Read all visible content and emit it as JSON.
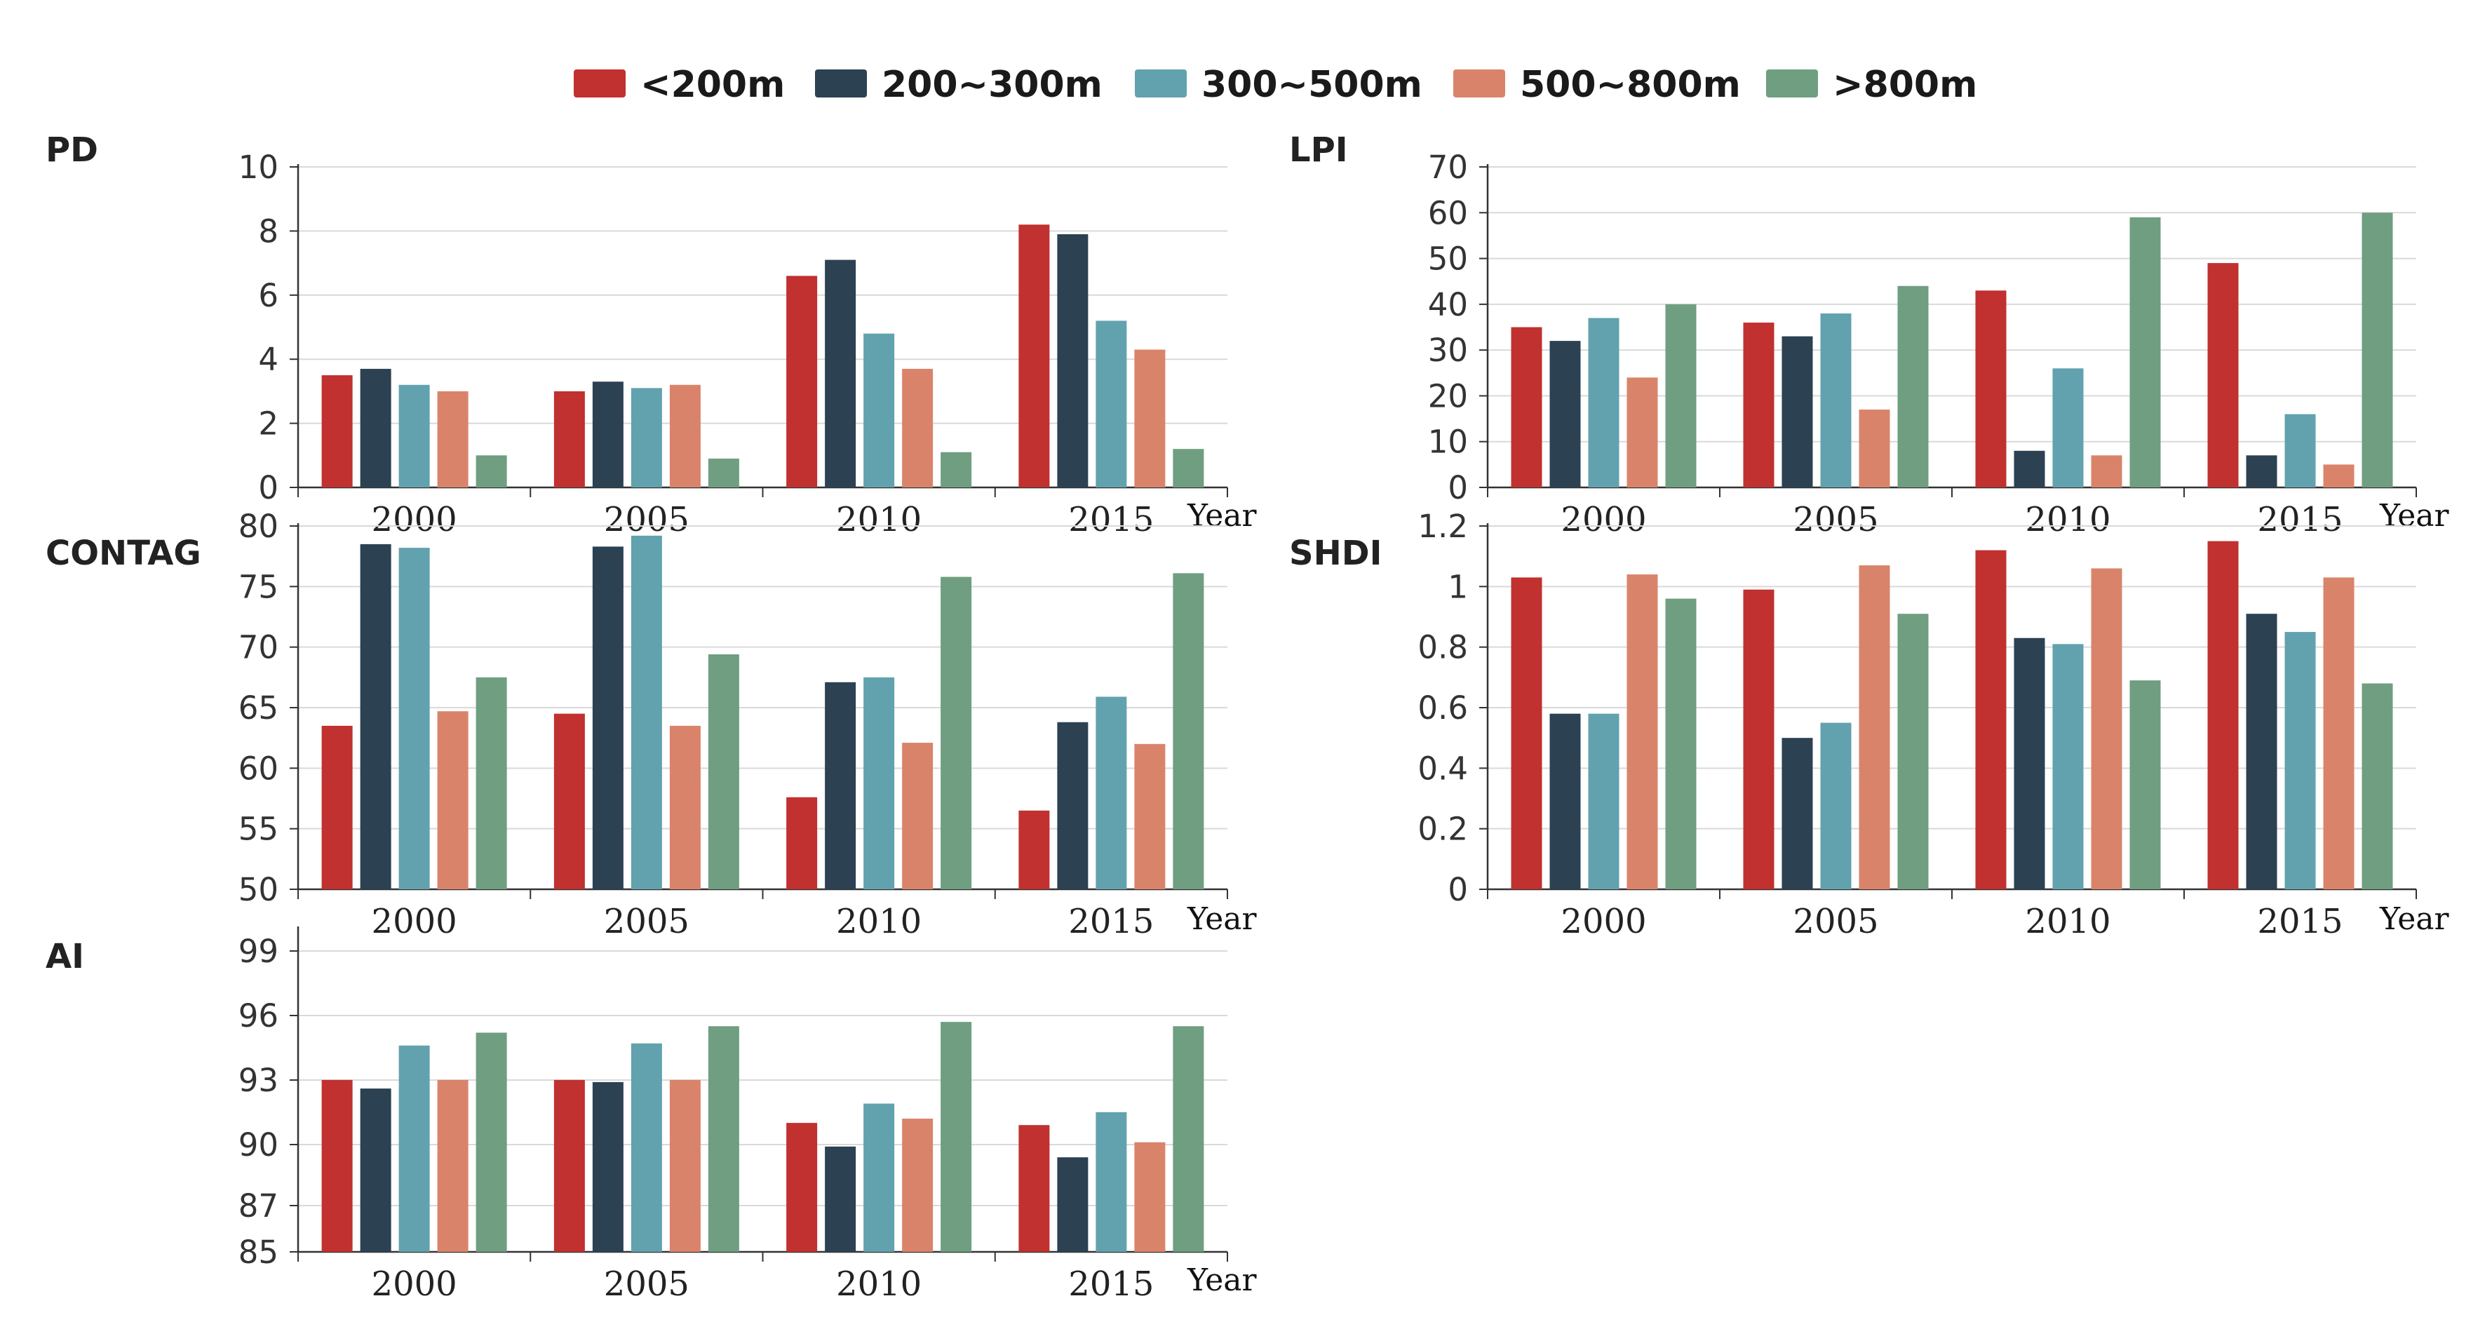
{
  "colors": {
    "lt200": "#c0312f",
    "s200_300": "#2c4152",
    "s300_500": "#62a2ae",
    "s500_800": "#d9846a",
    "gt800": "#6f9e80",
    "grid": "#d9d9d9",
    "axis": "#333333"
  },
  "legend": [
    "<200m",
    "200~300m",
    "300~500m",
    "500~800m",
    ">800m"
  ],
  "chart_data": [
    {
      "type": "bar",
      "title": "PD",
      "xlabel": "Year",
      "categories": [
        "2000",
        "2005",
        "2010",
        "2015"
      ],
      "ylim": [
        0,
        10
      ],
      "yticks": [
        "0",
        "2",
        "4",
        "6",
        "8",
        "10"
      ],
      "grid": true,
      "series": [
        {
          "name": "<200m",
          "values": [
            3.5,
            3.0,
            6.6,
            8.2
          ]
        },
        {
          "name": "200~300m",
          "values": [
            3.7,
            3.3,
            7.1,
            7.9
          ]
        },
        {
          "name": "300~500m",
          "values": [
            3.2,
            3.1,
            4.8,
            5.2
          ]
        },
        {
          "name": "500~800m",
          "values": [
            3.0,
            3.2,
            3.7,
            4.3
          ]
        },
        {
          "name": ">800m",
          "values": [
            1.0,
            0.9,
            1.1,
            1.2
          ]
        }
      ]
    },
    {
      "type": "bar",
      "title": "LPI",
      "xlabel": "Year",
      "categories": [
        "2000",
        "2005",
        "2010",
        "2015"
      ],
      "ylim": [
        0,
        70
      ],
      "yticks": [
        "0",
        "10",
        "20",
        "30",
        "40",
        "50",
        "60",
        "70"
      ],
      "grid": true,
      "series": [
        {
          "name": "<200m",
          "values": [
            35,
            36,
            43,
            49
          ]
        },
        {
          "name": "200~300m",
          "values": [
            32,
            33,
            8,
            7
          ]
        },
        {
          "name": "300~500m",
          "values": [
            37,
            38,
            26,
            16
          ]
        },
        {
          "name": "500~800m",
          "values": [
            24,
            17,
            7,
            5
          ]
        },
        {
          "name": ">800m",
          "values": [
            40,
            44,
            59,
            60
          ]
        }
      ]
    },
    {
      "type": "bar",
      "title": "CONTAG",
      "xlabel": "Year",
      "categories": [
        "2000",
        "2005",
        "2010",
        "2015"
      ],
      "ylim": [
        50,
        80
      ],
      "yticks": [
        "50",
        "55",
        "60",
        "65",
        "70",
        "75",
        "80"
      ],
      "grid": true,
      "series": [
        {
          "name": "<200m",
          "values": [
            63.5,
            64.5,
            57.6,
            56.5
          ]
        },
        {
          "name": "200~300m",
          "values": [
            78.5,
            78.3,
            67.1,
            63.8
          ]
        },
        {
          "name": "300~500m",
          "values": [
            78.2,
            79.2,
            67.5,
            65.9
          ]
        },
        {
          "name": "500~800m",
          "values": [
            64.7,
            63.5,
            62.1,
            62.0
          ]
        },
        {
          "name": ">800m",
          "values": [
            67.5,
            69.4,
            75.8,
            76.1
          ]
        }
      ]
    },
    {
      "type": "bar",
      "title": "SHDI",
      "xlabel": "Year",
      "categories": [
        "2000",
        "2005",
        "2010",
        "2015"
      ],
      "ylim": [
        0,
        1.2
      ],
      "yticks": [
        "0",
        "0.2",
        "0.4",
        "0.6",
        "0.8",
        "1",
        "1.2"
      ],
      "grid": true,
      "series": [
        {
          "name": "<200m",
          "values": [
            1.03,
            0.99,
            1.12,
            1.15
          ]
        },
        {
          "name": "200~300m",
          "values": [
            0.58,
            0.5,
            0.83,
            0.91
          ]
        },
        {
          "name": "300~500m",
          "values": [
            0.58,
            0.55,
            0.81,
            0.85
          ]
        },
        {
          "name": "500~800m",
          "values": [
            1.04,
            1.07,
            1.06,
            1.03
          ]
        },
        {
          "name": ">800m",
          "values": [
            0.96,
            0.91,
            0.69,
            0.68
          ]
        }
      ]
    },
    {
      "type": "bar",
      "title": "AI",
      "xlabel": "Year",
      "categories": [
        "2000",
        "2005",
        "2010",
        "2015"
      ],
      "ylim": [
        85,
        100
      ],
      "yticks": [
        "85",
        "87",
        "90",
        "93",
        "96",
        "99"
      ],
      "grid": true,
      "series": [
        {
          "name": "<200m",
          "values": [
            93.0,
            93.0,
            91.0,
            90.9
          ]
        },
        {
          "name": "200~300m",
          "values": [
            92.6,
            92.9,
            89.9,
            89.4
          ]
        },
        {
          "name": "300~500m",
          "values": [
            94.6,
            94.7,
            91.9,
            91.5
          ]
        },
        {
          "name": "500~800m",
          "values": [
            93.0,
            93.0,
            91.2,
            90.1
          ]
        },
        {
          "name": ">800m",
          "values": [
            95.2,
            95.5,
            95.7,
            95.5
          ]
        }
      ]
    }
  ]
}
